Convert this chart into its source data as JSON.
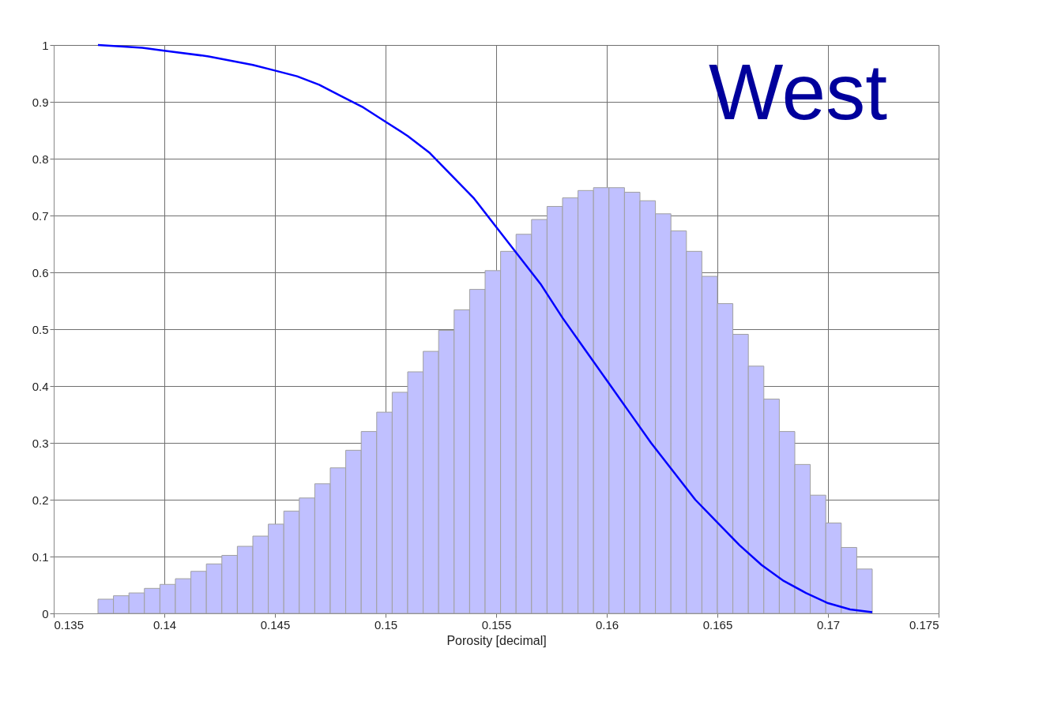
{
  "chart_data": {
    "type": "histogram",
    "xlabel": "Porosity [decimal]",
    "xlim": [
      0.135,
      0.175
    ],
    "xticks": [
      0.135,
      0.14,
      0.145,
      0.15,
      0.155,
      0.16,
      0.165,
      0.17,
      0.175
    ],
    "ylim": [
      0,
      1
    ],
    "yticks": [
      0,
      0.1,
      0.2,
      0.3,
      0.4,
      0.5,
      0.6,
      0.7,
      0.8,
      0.9,
      1
    ],
    "grid": true,
    "annotations": [
      "West"
    ],
    "series": [
      {
        "color": "#c0c0ff",
        "bins": [
          0.137,
          0.1377,
          0.1384,
          0.1391,
          0.1398,
          0.1405,
          0.1412,
          0.1419,
          0.1426,
          0.1433,
          0.144,
          0.1447,
          0.1454,
          0.1461,
          0.1468,
          0.1475,
          0.1482,
          0.1489,
          0.1496,
          0.1503,
          0.151,
          0.1517,
          0.1524,
          0.1531,
          0.1538,
          0.1545,
          0.1552,
          0.1559,
          0.1566,
          0.1573,
          0.158,
          0.1587,
          0.1594,
          0.1601,
          0.1608,
          0.1615,
          0.1622,
          0.1629,
          0.1636,
          0.1643,
          0.165,
          0.1657,
          0.1664,
          0.1671,
          0.1678,
          0.1685,
          0.1692,
          0.1699,
          0.1706,
          0.1713,
          0.172
        ],
        "values": [
          0.025,
          0.031,
          0.036,
          0.044,
          0.051,
          0.061,
          0.074,
          0.087,
          0.102,
          0.118,
          0.136,
          0.157,
          0.18,
          0.203,
          0.228,
          0.256,
          0.287,
          0.32,
          0.354,
          0.389,
          0.425,
          0.461,
          0.498,
          0.534,
          0.57,
          0.603,
          0.637,
          0.667,
          0.693,
          0.716,
          0.731,
          0.744,
          0.749,
          0.749,
          0.741,
          0.726,
          0.703,
          0.673,
          0.637,
          0.593,
          0.545,
          0.491,
          0.435,
          0.377,
          0.32,
          0.262,
          0.208,
          0.159,
          0.116,
          0.078
        ]
      },
      {
        "type": "line",
        "color": "#0000ff",
        "x": [
          0.137,
          0.139,
          0.14,
          0.142,
          0.144,
          0.145,
          0.146,
          0.147,
          0.148,
          0.149,
          0.15,
          0.151,
          0.152,
          0.153,
          0.154,
          0.155,
          0.156,
          0.157,
          0.158,
          0.159,
          0.16,
          0.161,
          0.162,
          0.163,
          0.164,
          0.165,
          0.166,
          0.167,
          0.168,
          0.169,
          0.17,
          0.171,
          0.172
        ],
        "values": [
          1.0,
          0.995,
          0.99,
          0.98,
          0.965,
          0.955,
          0.945,
          0.93,
          0.91,
          0.89,
          0.865,
          0.84,
          0.81,
          0.77,
          0.73,
          0.68,
          0.63,
          0.58,
          0.52,
          0.465,
          0.41,
          0.355,
          0.3,
          0.25,
          0.2,
          0.16,
          0.12,
          0.085,
          0.057,
          0.036,
          0.018,
          0.007,
          0.002
        ]
      }
    ]
  }
}
